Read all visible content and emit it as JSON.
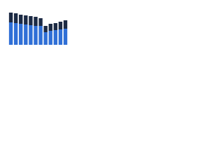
{
  "chart_data": {
    "type": "stacked-bar",
    "categories": [
      null,
      null,
      null,
      null,
      null,
      null,
      null,
      null,
      null,
      null,
      null,
      null
    ],
    "series": [
      {
        "color": "#2f6fd6",
        "values": [
          32,
          31,
          30,
          29,
          28,
          27,
          27,
          18,
          20,
          21,
          22,
          23
        ]
      },
      {
        "color": "#1c2a44",
        "values": [
          14,
          14,
          13,
          13,
          13,
          13,
          11,
          9,
          10,
          10,
          11,
          12
        ]
      }
    ],
    "ylim": [
      0,
      50
    ]
  }
}
